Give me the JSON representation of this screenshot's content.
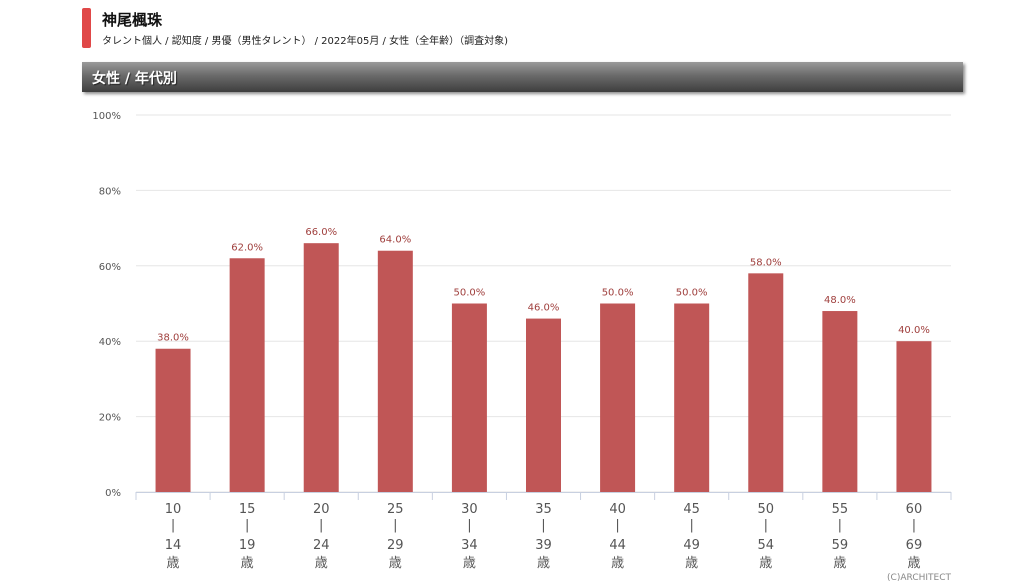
{
  "header": {
    "title": "神尾楓珠",
    "subtitle": "タレント個人 / 認知度 / 男優（男性タレント） / 2022年05月 / 女性（全年齢）（調査対象)"
  },
  "section": {
    "title": "女性 / 年代別"
  },
  "copyright": "(C)ARCHITECT",
  "colors": {
    "bar": "#c05656",
    "accent": "#e04848",
    "label": "#a0403e"
  },
  "chart_data": {
    "type": "bar",
    "title": "女性 / 年代別",
    "categories": [
      [
        "10",
        "|",
        "14",
        "歳"
      ],
      [
        "15",
        "|",
        "19",
        "歳"
      ],
      [
        "20",
        "|",
        "24",
        "歳"
      ],
      [
        "25",
        "|",
        "29",
        "歳"
      ],
      [
        "30",
        "|",
        "34",
        "歳"
      ],
      [
        "35",
        "|",
        "39",
        "歳"
      ],
      [
        "40",
        "|",
        "44",
        "歳"
      ],
      [
        "45",
        "|",
        "49",
        "歳"
      ],
      [
        "50",
        "|",
        "54",
        "歳"
      ],
      [
        "55",
        "|",
        "59",
        "歳"
      ],
      [
        "60",
        "|",
        "69",
        "歳"
      ]
    ],
    "values": [
      38.0,
      62.0,
      66.0,
      64.0,
      50.0,
      46.0,
      50.0,
      50.0,
      58.0,
      48.0,
      40.0
    ],
    "data_labels": [
      "38.0%",
      "62.0%",
      "66.0%",
      "64.0%",
      "50.0%",
      "46.0%",
      "50.0%",
      "50.0%",
      "58.0%",
      "48.0%",
      "40.0%"
    ],
    "y_ticks": [
      "0%",
      "20%",
      "40%",
      "60%",
      "80%",
      "100%"
    ],
    "ylim": [
      0,
      100
    ],
    "grid": true,
    "legend": "none"
  }
}
